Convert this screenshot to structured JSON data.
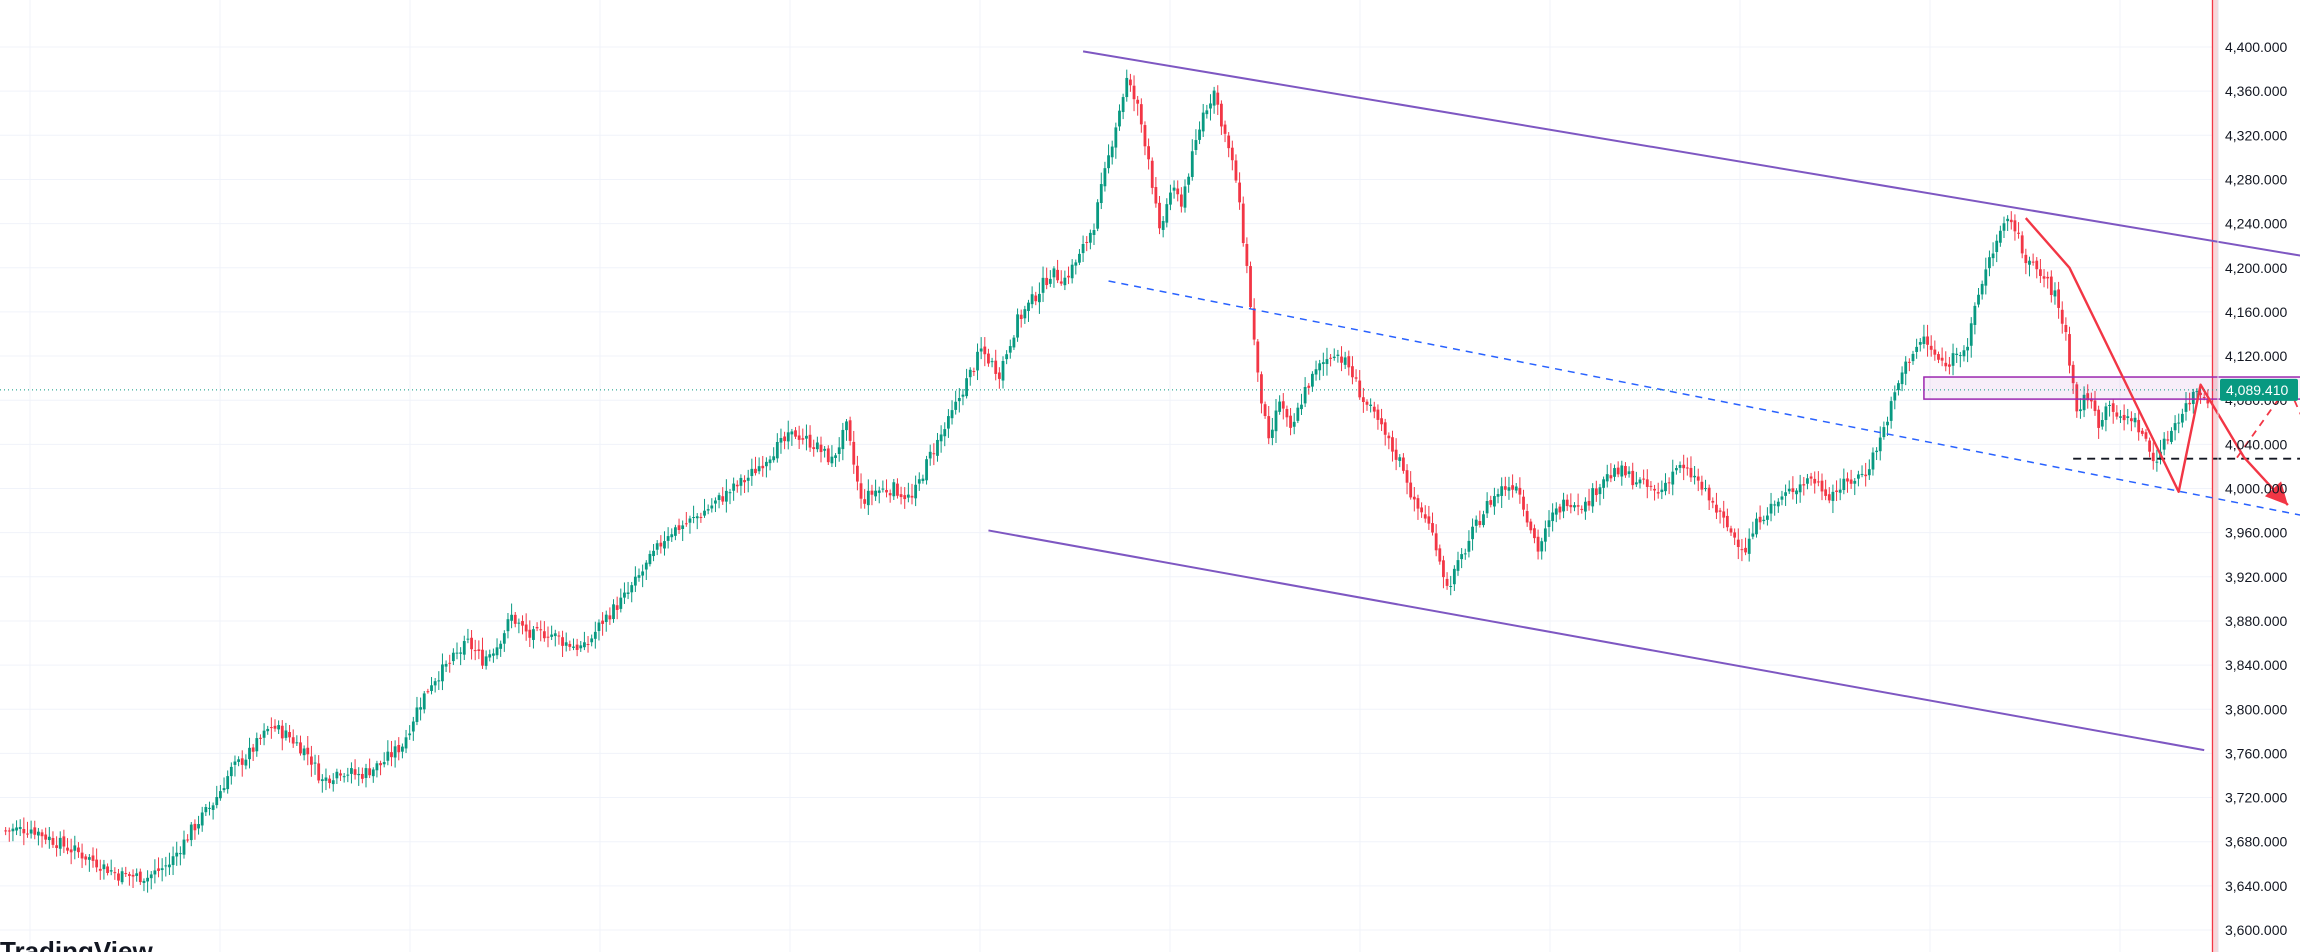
{
  "brand": {
    "text": "TradingView"
  },
  "chart_data": {
    "type": "candlestick",
    "y_axis": {
      "side": "right",
      "min": 3588,
      "max": 4416,
      "ticks": [
        3600,
        3640,
        3680,
        3720,
        3760,
        3800,
        3840,
        3880,
        3920,
        3960,
        4000,
        4040,
        4080,
        4120,
        4160,
        4200,
        4240,
        4280,
        4320,
        4360,
        4400
      ],
      "tick_labels": [
        "3,600.000",
        "3,640.000",
        "3,680.000",
        "3,720.000",
        "3,760.000",
        "3,800.000",
        "3,840.000",
        "3,880.000",
        "3,920.000",
        "3,960.000",
        "4,000.000",
        "4,040.000",
        "4,080.000",
        "4,120.000",
        "4,160.000",
        "4,200.000",
        "4,240.000",
        "4,280.000",
        "4,320.000",
        "4,360.000",
        "4,400.000"
      ]
    },
    "current_price": 4089.41,
    "current_price_label": "4,089.410",
    "grid": true,
    "up_color": "#089981",
    "down_color": "#f23645",
    "projection_zone_color": "#f8d7da",
    "channel_color": "#7e57c2",
    "midline_color": "#2962ff",
    "pattern_color": "#f23645",
    "price_path": [
      [
        0,
        3690
      ],
      [
        8,
        3692
      ],
      [
        16,
        3678
      ],
      [
        24,
        3665
      ],
      [
        32,
        3650
      ],
      [
        40,
        3648
      ],
      [
        46,
        3660
      ],
      [
        52,
        3690
      ],
      [
        58,
        3715
      ],
      [
        63,
        3745
      ],
      [
        68,
        3760
      ],
      [
        74,
        3785
      ],
      [
        79,
        3775
      ],
      [
        84,
        3760
      ],
      [
        88,
        3735
      ],
      [
        93,
        3745
      ],
      [
        98,
        3740
      ],
      [
        104,
        3750
      ],
      [
        110,
        3768
      ],
      [
        114,
        3800
      ],
      [
        118,
        3825
      ],
      [
        123,
        3842
      ],
      [
        128,
        3860
      ],
      [
        132,
        3845
      ],
      [
        136,
        3858
      ],
      [
        140,
        3884
      ],
      [
        145,
        3866
      ],
      [
        150,
        3870
      ],
      [
        155,
        3860
      ],
      [
        160,
        3855
      ],
      [
        165,
        3880
      ],
      [
        172,
        3905
      ],
      [
        178,
        3935
      ],
      [
        183,
        3960
      ],
      [
        190,
        3972
      ],
      [
        197,
        3990
      ],
      [
        205,
        4010
      ],
      [
        212,
        4035
      ],
      [
        218,
        4050
      ],
      [
        223,
        4040
      ],
      [
        228,
        4025
      ],
      [
        232,
        4055
      ],
      [
        236,
        3988
      ],
      [
        240,
        3998
      ],
      [
        245,
        4000
      ],
      [
        250,
        3990
      ],
      [
        255,
        4030
      ],
      [
        260,
        4060
      ],
      [
        264,
        4090
      ],
      [
        269,
        4125
      ],
      [
        274,
        4105
      ],
      [
        279,
        4152
      ],
      [
        284,
        4175
      ],
      [
        288,
        4195
      ],
      [
        292,
        4190
      ],
      [
        296,
        4210
      ],
      [
        300,
        4240
      ],
      [
        303,
        4285
      ],
      [
        306,
        4330
      ],
      [
        309,
        4370
      ],
      [
        312,
        4345
      ],
      [
        315,
        4300
      ],
      [
        318,
        4230
      ],
      [
        321,
        4270
      ],
      [
        324,
        4260
      ],
      [
        327,
        4300
      ],
      [
        330,
        4340
      ],
      [
        333,
        4360
      ],
      [
        336,
        4320
      ],
      [
        339,
        4280
      ],
      [
        342,
        4200
      ],
      [
        345,
        4100
      ],
      [
        348,
        4040
      ],
      [
        351,
        4080
      ],
      [
        354,
        4050
      ],
      [
        358,
        4090
      ],
      [
        362,
        4110
      ],
      [
        366,
        4125
      ],
      [
        370,
        4110
      ],
      [
        374,
        4080
      ],
      [
        378,
        4060
      ],
      [
        382,
        4035
      ],
      [
        385,
        4020
      ],
      [
        388,
        3985
      ],
      [
        391,
        3975
      ],
      [
        394,
        3950
      ],
      [
        397,
        3910
      ],
      [
        400,
        3930
      ],
      [
        404,
        3960
      ],
      [
        408,
        3985
      ],
      [
        412,
        4000
      ],
      [
        416,
        4005
      ],
      [
        419,
        3975
      ],
      [
        422,
        3945
      ],
      [
        426,
        3975
      ],
      [
        430,
        3990
      ],
      [
        435,
        3985
      ],
      [
        440,
        4010
      ],
      [
        445,
        4015
      ],
      [
        450,
        4005
      ],
      [
        455,
        3995
      ],
      [
        460,
        4020
      ],
      [
        465,
        4010
      ],
      [
        470,
        3985
      ],
      [
        475,
        3960
      ],
      [
        479,
        3945
      ],
      [
        483,
        3975
      ],
      [
        487,
        3985
      ],
      [
        492,
        4000
      ],
      [
        497,
        4010
      ],
      [
        502,
        3995
      ],
      [
        507,
        4005
      ],
      [
        512,
        4015
      ],
      [
        516,
        4045
      ],
      [
        519,
        4075
      ],
      [
        522,
        4105
      ],
      [
        525,
        4125
      ],
      [
        528,
        4135
      ],
      [
        531,
        4120
      ],
      [
        534,
        4110
      ],
      [
        537,
        4125
      ],
      [
        540,
        4130
      ],
      [
        543,
        4175
      ],
      [
        546,
        4210
      ],
      [
        549,
        4230
      ],
      [
        552,
        4245
      ],
      [
        555,
        4215
      ],
      [
        558,
        4200
      ],
      [
        561,
        4190
      ],
      [
        564,
        4175
      ],
      [
        567,
        4140
      ],
      [
        570,
        4070
      ],
      [
        573,
        4085
      ],
      [
        576,
        4060
      ],
      [
        579,
        4080
      ],
      [
        582,
        4060
      ],
      [
        585,
        4065
      ],
      [
        588,
        4050
      ],
      [
        591,
        4025
      ],
      [
        594,
        4040
      ],
      [
        597,
        4060
      ],
      [
        600,
        4075
      ],
      [
        603,
        4090
      ],
      [
        606,
        4082
      ]
    ],
    "lines": [
      {
        "name": "channel-top",
        "style": "solid",
        "points": [
          [
            297,
            4396
          ],
          [
            664,
            4193
          ]
        ]
      },
      {
        "name": "channel-bottom",
        "style": "solid",
        "points": [
          [
            271,
            3962
          ],
          [
            605,
            3763
          ]
        ]
      },
      {
        "name": "channel-midline",
        "style": "dashed",
        "points": [
          [
            304,
            4188
          ],
          [
            656,
            3960
          ]
        ]
      },
      {
        "name": "breakdown-level",
        "style": "dashed",
        "points": [
          [
            569,
            4027
          ],
          [
            653,
            4027
          ]
        ]
      }
    ],
    "zones": [
      {
        "name": "resistance-box",
        "from_x": 528,
        "to_x": 653,
        "low": 4081,
        "high": 4101
      }
    ],
    "pattern_path": [
      [
        556,
        4245
      ],
      [
        568,
        4200
      ],
      [
        598,
        3997
      ],
      [
        604,
        4094
      ],
      [
        616,
        4028
      ],
      [
        628,
        3985
      ]
    ],
    "projection_path": [
      [
        614,
        4028
      ],
      [
        628,
        4093
      ],
      [
        640,
        4005
      ],
      [
        646,
        4015
      ]
    ],
    "zone_start_x": 607
  }
}
